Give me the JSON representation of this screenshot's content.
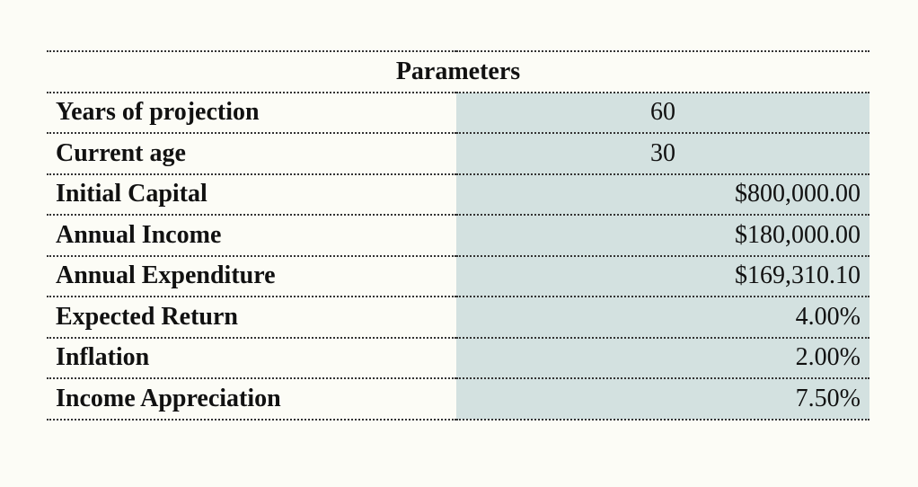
{
  "table": {
    "title": "Parameters",
    "rows": [
      [
        "Years of projection",
        "60"
      ],
      [
        "Current age",
        "30"
      ],
      [
        "Initial Capital",
        "$800,000.00"
      ],
      [
        "Annual Income",
        "$180,000.00"
      ],
      [
        "Annual Expenditure",
        "$169,310.10"
      ],
      [
        "Expected Return",
        "4.00%"
      ],
      [
        "Inflation",
        "2.00%"
      ],
      [
        "Income Appreciation",
        "7.50%"
      ]
    ]
  }
}
